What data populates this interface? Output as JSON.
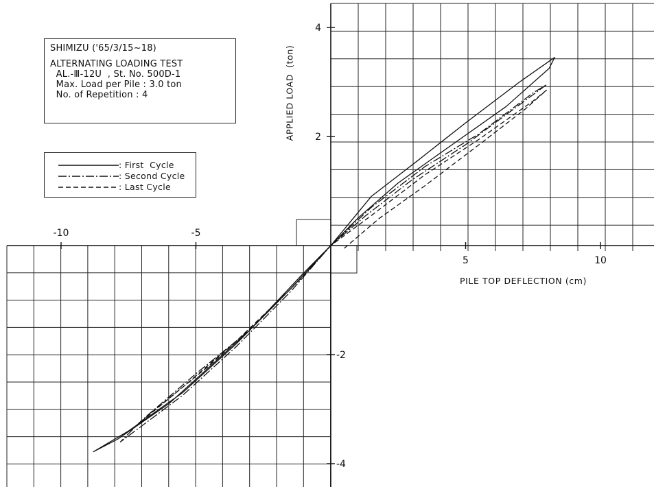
{
  "info": {
    "line1": "SHIMIZU ('65/3/15~18)",
    "line2": "ALTERNATING LOADING TEST",
    "line3": "  AL.-Ⅲ-12U  , St. No. 500D-1",
    "line4": "  Max. Load per Pile : 3.0 ton",
    "line5": "  No. of Repetition : 4"
  },
  "legend": {
    "first": ": First  Cycle",
    "second": ": Second Cycle",
    "last": ": Last Cycle"
  },
  "chart_data": {
    "type": "line",
    "xlabel": "PILE TOP DEFLECTION (cm)",
    "ylabel": "APPLIED LOAD  (ton)",
    "xlim": [
      -12,
      12
    ],
    "ylim": [
      -4.5,
      4.9
    ],
    "x_ticks": [
      -10,
      -5,
      5,
      10
    ],
    "x_tick_labels": [
      "-10",
      "-5",
      "5",
      "10"
    ],
    "y_ticks": [
      4,
      2,
      -2,
      -4
    ],
    "y_tick_labels": [
      "4",
      "2",
      "-2",
      "-4"
    ],
    "grid": true,
    "legend_position": "top-left",
    "series": [
      {
        "name": "First Cycle",
        "style": "solid",
        "points": [
          [
            0,
            0
          ],
          [
            1.5,
            0.9
          ],
          [
            3.2,
            1.55
          ],
          [
            5,
            2.25
          ],
          [
            7,
            3.0
          ],
          [
            8.3,
            3.45
          ],
          [
            8.1,
            3.25
          ],
          [
            6.5,
            2.55
          ],
          [
            4.5,
            1.85
          ],
          [
            2.5,
            1.15
          ],
          [
            1,
            0.5
          ],
          [
            0,
            0
          ],
          [
            -1.5,
            -0.8
          ],
          [
            -3.5,
            -1.8
          ],
          [
            -5.5,
            -2.7
          ],
          [
            -7.5,
            -3.4
          ],
          [
            -8.8,
            -3.78
          ],
          [
            -7.9,
            -3.55
          ],
          [
            -6,
            -2.9
          ],
          [
            -5,
            -2.45
          ],
          [
            -3,
            -1.55
          ],
          [
            -1,
            -0.5
          ],
          [
            0,
            0
          ]
        ]
      },
      {
        "name": "Second Cycle",
        "style": "dashdot",
        "points": [
          [
            0,
            0
          ],
          [
            1.3,
            0.55
          ],
          [
            3,
            1.2
          ],
          [
            5,
            1.85
          ],
          [
            6.5,
            2.4
          ],
          [
            8.0,
            2.95
          ],
          [
            7.5,
            2.8
          ],
          [
            5.5,
            2.05
          ],
          [
            3.5,
            1.45
          ],
          [
            1.5,
            0.7
          ],
          [
            0,
            0
          ],
          [
            -1.5,
            -0.85
          ],
          [
            -3.5,
            -1.85
          ],
          [
            -5.5,
            -2.75
          ],
          [
            -7.8,
            -3.6
          ],
          [
            -7.0,
            -3.2
          ],
          [
            -5,
            -2.35
          ],
          [
            -3,
            -1.55
          ],
          [
            -1,
            -0.5
          ],
          [
            0,
            0
          ]
        ]
      },
      {
        "name": "Last Cycle",
        "style": "dashed",
        "points": [
          [
            0.5,
            -0.05
          ],
          [
            1.8,
            0.5
          ],
          [
            3.5,
            1.1
          ],
          [
            5.5,
            1.85
          ],
          [
            7.2,
            2.5
          ],
          [
            8.0,
            2.85
          ],
          [
            7.5,
            2.65
          ],
          [
            5.5,
            1.95
          ],
          [
            3.5,
            1.3
          ],
          [
            1.5,
            0.55
          ],
          [
            0,
            0
          ],
          [
            -1.5,
            -0.8
          ],
          [
            -3.5,
            -1.75
          ],
          [
            -5.5,
            -2.6
          ],
          [
            -7.2,
            -3.3
          ],
          [
            -6.5,
            -3.0
          ],
          [
            -4.5,
            -2.2
          ],
          [
            -2.5,
            -1.3
          ],
          [
            -1,
            -0.55
          ],
          [
            0,
            0
          ]
        ]
      }
    ]
  }
}
